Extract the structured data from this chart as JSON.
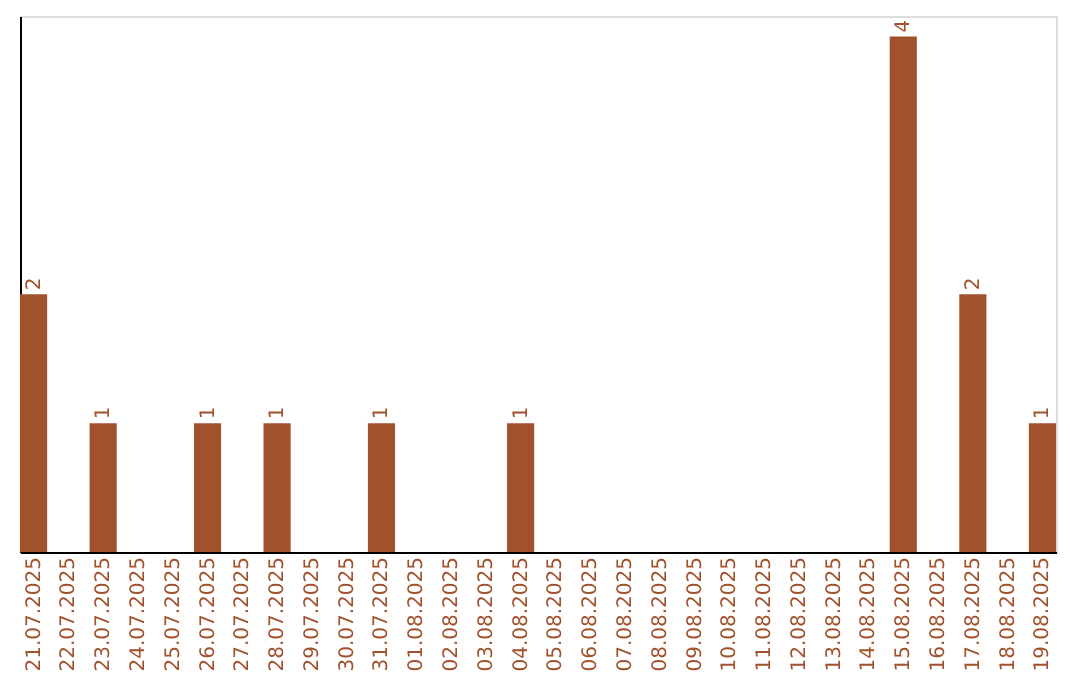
{
  "chart_data": {
    "type": "bar",
    "categories": [
      "21.07.2025",
      "22.07.2025",
      "23.07.2025",
      "24.07.2025",
      "25.07.2025",
      "26.07.2025",
      "27.07.2025",
      "28.07.2025",
      "29.07.2025",
      "30.07.2025",
      "31.07.2025",
      "01.08.2025",
      "02.08.2025",
      "03.08.2025",
      "04.08.2025",
      "05.08.2025",
      "06.08.2025",
      "07.08.2025",
      "08.08.2025",
      "09.08.2025",
      "10.08.2025",
      "11.08.2025",
      "12.08.2025",
      "13.08.2025",
      "14.08.2025",
      "15.08.2025",
      "16.08.2025",
      "17.08.2025",
      "18.08.2025",
      "19.08.2025"
    ],
    "values": [
      2,
      0,
      1,
      0,
      0,
      1,
      0,
      1,
      0,
      0,
      1,
      0,
      0,
      0,
      1,
      0,
      0,
      0,
      0,
      0,
      0,
      0,
      0,
      0,
      0,
      4,
      0,
      2,
      0,
      1
    ],
    "value_labels": [
      "2",
      null,
      "1",
      null,
      null,
      "1",
      null,
      "1",
      null,
      null,
      "1",
      null,
      null,
      null,
      "1",
      null,
      null,
      null,
      null,
      null,
      null,
      null,
      null,
      null,
      null,
      "4",
      null,
      "2",
      null,
      "1"
    ],
    "color": "#a0522d",
    "grid": false
  }
}
